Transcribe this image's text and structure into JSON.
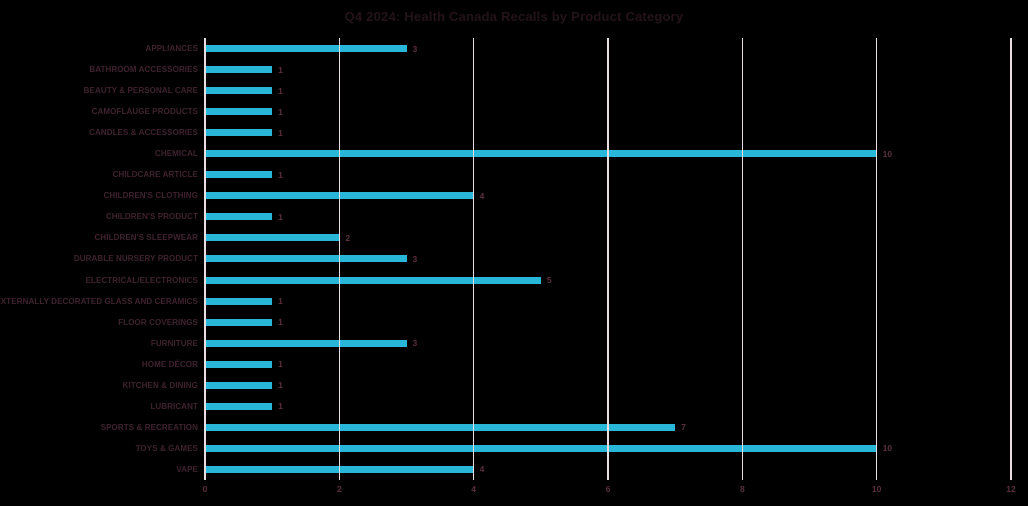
{
  "title": "Q4 2024: Health Canada Recalls by Product Category",
  "colors": {
    "background": "#000000",
    "bar": "#29b7d9",
    "gridline": "#e9dee3",
    "title_text": "#241318",
    "category_text": "#40222f",
    "value_text": "#5c2f3b"
  },
  "chart_data": {
    "type": "bar",
    "orientation": "horizontal",
    "title": "Q4 2024: Health Canada Recalls by Product Category",
    "xlabel": "",
    "ylabel": "",
    "xlim": [
      0,
      12
    ],
    "x_ticks": [
      "0",
      "2",
      "4",
      "6",
      "8",
      "10",
      "12"
    ],
    "x_tick_values": [
      0,
      2,
      4,
      6,
      8,
      10,
      12
    ],
    "grid": "vertical gridlines on, drawn over bars",
    "legend": "none",
    "data_labels": "value shown at end of each bar",
    "categories": [
      "APPLIANCES",
      "BATHROOM ACCESSORIES",
      "BEAUTY & PERSONAL CARE",
      "CAMOFLAUGE PRODUCTS",
      "CANDLES & ACCESSORIES",
      "CHEMICAL",
      "CHILDCARE ARTICLE",
      "CHILDREN'S CLOTHING",
      "CHILDREN'S PRODUCT",
      "CHILDREN'S SLEEPWEAR",
      "DURABLE NURSERY PRODUCT",
      "ELECTRICAL/ELECTRONICS",
      "EXTERNALLY DECORATED GLASS AND CERAMICS",
      "FLOOR COVERINGS",
      "FURNITURE",
      "HOME DÉCOR",
      "KITCHEN & DINING",
      "LUBRICANT",
      "SPORTS & RECREATION",
      "TOYS & GAMES",
      "VAPE"
    ],
    "values": [
      3,
      1,
      1,
      1,
      1,
      10,
      1,
      4,
      1,
      2,
      3,
      5,
      1,
      1,
      3,
      1,
      1,
      1,
      7,
      10,
      4
    ]
  }
}
